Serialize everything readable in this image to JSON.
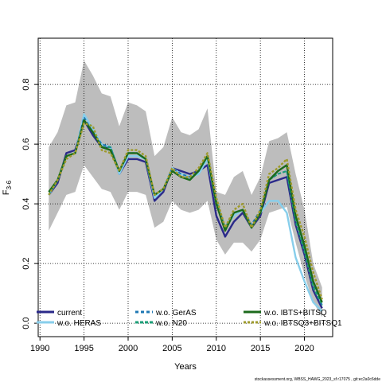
{
  "chart_data": {
    "type": "line",
    "xlabel": "Years",
    "ylabel_main": "F",
    "ylabel_sub": "3-6",
    "xlim": [
      1989.8,
      2023.2
    ],
    "ylim": [
      -0.045,
      0.955
    ],
    "x_ticks": [
      1990,
      1995,
      2000,
      2005,
      2010,
      2015,
      2020
    ],
    "y_ticks": [
      0.0,
      0.2,
      0.4,
      0.6,
      0.8
    ],
    "y_tick_labels": [
      "0.0",
      "0.2",
      "0.4",
      "0.6",
      "0.8"
    ],
    "grid": true,
    "legend_position": "bottom",
    "footnote": "stockassessment.org, WBSS_HAWG_2023_sf r17075 , git:ec2a0c6dde",
    "years": [
      1991,
      1992,
      1993,
      1994,
      1995,
      1996,
      1997,
      1998,
      1999,
      2000,
      2001,
      2002,
      2003,
      2004,
      2005,
      2006,
      2007,
      2008,
      2009,
      2010,
      2011,
      2012,
      2013,
      2014,
      2015,
      2016,
      2017,
      2018,
      2019,
      2020,
      2021,
      2022
    ],
    "band": {
      "upper": [
        0.59,
        0.64,
        0.73,
        0.74,
        0.88,
        0.83,
        0.77,
        0.76,
        0.66,
        0.74,
        0.73,
        0.71,
        0.56,
        0.59,
        0.69,
        0.64,
        0.63,
        0.65,
        0.72,
        0.44,
        0.43,
        0.49,
        0.51,
        0.43,
        0.49,
        0.61,
        0.62,
        0.64,
        0.5,
        0.38,
        0.2,
        0.12
      ],
      "lower": [
        0.31,
        0.37,
        0.43,
        0.44,
        0.53,
        0.49,
        0.45,
        0.44,
        0.38,
        0.44,
        0.44,
        0.43,
        0.32,
        0.34,
        0.41,
        0.38,
        0.37,
        0.38,
        0.41,
        0.28,
        0.23,
        0.27,
        0.27,
        0.24,
        0.28,
        0.37,
        0.38,
        0.39,
        0.27,
        0.16,
        0.07,
        0.02
      ]
    },
    "series": [
      {
        "name": "current",
        "color": "#2b2a8a",
        "dash": "",
        "width": 2.4,
        "values": [
          0.43,
          0.47,
          0.57,
          0.58,
          0.68,
          0.63,
          0.59,
          0.59,
          0.5,
          0.55,
          0.55,
          0.54,
          0.41,
          0.44,
          0.52,
          0.51,
          0.5,
          0.51,
          0.53,
          0.36,
          0.29,
          0.34,
          0.37,
          0.32,
          0.36,
          0.47,
          0.48,
          0.49,
          0.33,
          0.23,
          0.11,
          0.05
        ]
      },
      {
        "name": "w.o. HERAS",
        "color": "#87ceeb",
        "dash": "",
        "width": 2.4,
        "values": [
          0.43,
          0.48,
          0.56,
          0.57,
          0.7,
          0.65,
          0.6,
          0.59,
          0.5,
          0.56,
          0.56,
          0.55,
          0.42,
          0.45,
          0.52,
          0.5,
          0.49,
          0.5,
          0.55,
          0.4,
          0.32,
          0.36,
          0.38,
          0.32,
          0.37,
          0.41,
          0.41,
          0.37,
          0.22,
          0.14,
          0.07,
          0.04
        ]
      },
      {
        "name": "w.o. GerAS",
        "color": "#1f78b4",
        "dash": "4,3",
        "width": 2,
        "values": [
          0.43,
          0.48,
          0.56,
          0.57,
          0.69,
          0.64,
          0.6,
          0.59,
          0.51,
          0.57,
          0.57,
          0.55,
          0.43,
          0.45,
          0.52,
          0.5,
          0.49,
          0.51,
          0.56,
          0.41,
          0.32,
          0.37,
          0.38,
          0.33,
          0.38,
          0.48,
          0.5,
          0.51,
          0.35,
          0.25,
          0.13,
          0.06
        ]
      },
      {
        "name": "w.o. N20",
        "color": "#1b9e77",
        "dash": "4,2",
        "width": 2,
        "values": [
          0.43,
          0.48,
          0.56,
          0.57,
          0.68,
          0.64,
          0.59,
          0.59,
          0.51,
          0.57,
          0.57,
          0.55,
          0.43,
          0.45,
          0.51,
          0.49,
          0.48,
          0.51,
          0.56,
          0.41,
          0.32,
          0.37,
          0.38,
          0.32,
          0.37,
          0.48,
          0.5,
          0.51,
          0.34,
          0.24,
          0.12,
          0.06
        ]
      },
      {
        "name": "w.o. IBTS+BITSQ",
        "color": "#1b6a1b",
        "dash": "",
        "width": 2.4,
        "values": [
          0.44,
          0.48,
          0.56,
          0.57,
          0.68,
          0.64,
          0.59,
          0.58,
          0.51,
          0.57,
          0.57,
          0.55,
          0.43,
          0.45,
          0.51,
          0.49,
          0.48,
          0.51,
          0.56,
          0.4,
          0.31,
          0.37,
          0.38,
          0.32,
          0.37,
          0.48,
          0.51,
          0.53,
          0.36,
          0.26,
          0.14,
          0.07
        ]
      },
      {
        "name": "w.o. IBTSQ3+BITSQ1",
        "color": "#9e9a2b",
        "dash": "3,2",
        "width": 2.4,
        "values": [
          0.43,
          0.48,
          0.55,
          0.57,
          0.67,
          0.66,
          0.58,
          0.57,
          0.51,
          0.58,
          0.58,
          0.56,
          0.43,
          0.45,
          0.52,
          0.49,
          0.49,
          0.52,
          0.57,
          0.42,
          0.32,
          0.38,
          0.4,
          0.32,
          0.38,
          0.5,
          0.52,
          0.55,
          0.38,
          0.29,
          0.17,
          0.08
        ]
      }
    ],
    "legend": [
      {
        "label": "current",
        "series": 0
      },
      {
        "label": "w.o. HERAS",
        "series": 1
      },
      {
        "label": "w.o. GerAS",
        "series": 2
      },
      {
        "label": "w.o. N20",
        "series": 3
      },
      {
        "label": "w.o. IBTS+BITSQ",
        "series": 4
      },
      {
        "label": "w.o. IBTSQ3+BITSQ1",
        "series": 5
      }
    ]
  }
}
